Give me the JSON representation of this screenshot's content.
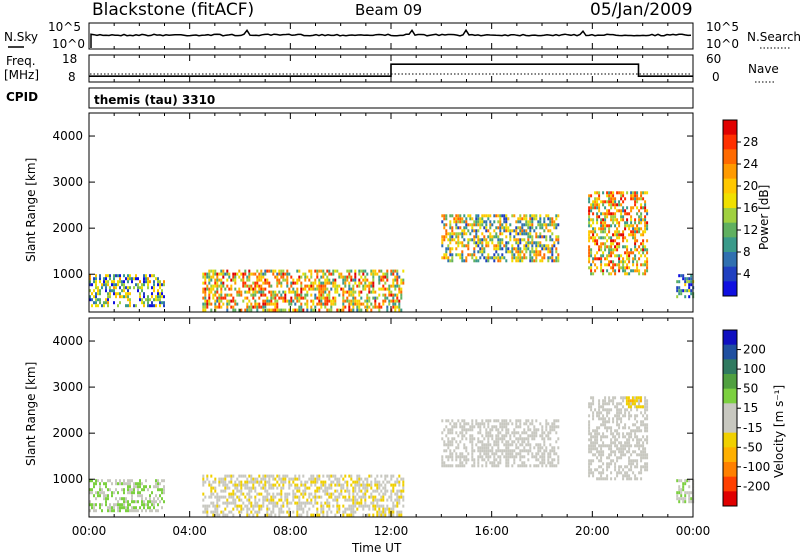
{
  "header": {
    "station": "Blackstone (fitACF)",
    "beam": "Beam 09",
    "date": "05/Jan/2009"
  },
  "nsky_panel": {
    "label": "N.Sky",
    "left_ticks": [
      "10^5",
      "10^0"
    ],
    "right_ticks": [
      "10^5",
      "10^0"
    ],
    "right_label": "N.Search"
  },
  "freq_panel": {
    "label_line1": "Freq.",
    "label_line2": "[MHz]",
    "left_ticks": [
      "18",
      "8"
    ],
    "right_ticks": [
      "60",
      "0"
    ],
    "right_label": "Nave",
    "cpid_label": "CPID"
  },
  "cpid_text": "themis (tau) 3310",
  "power_panel": {
    "ylabel": "Slant Range [km]",
    "colorbar_label": "Power [dB]",
    "colorbar_ticks": [
      "28",
      "24",
      "20",
      "16",
      "12",
      "8",
      "4"
    ],
    "colorbar_colors": [
      "#e00000",
      "#ff3000",
      "#ff6a00",
      "#ff9a00",
      "#ffc800",
      "#f0e000",
      "#a0d040",
      "#60b060",
      "#3a9a8a",
      "#3070b0",
      "#2040c0",
      "#1010e0"
    ]
  },
  "velocity_panel": {
    "ylabel": "Slant Range [km]",
    "colorbar_label": "Velocity [m s⁻¹]",
    "colorbar_ticks": [
      "200",
      "100",
      "50",
      "15",
      "-15",
      "-50",
      "-100",
      "-200"
    ],
    "colorbar_colors": [
      "#1010c0",
      "#2050a0",
      "#307a60",
      "#50a040",
      "#7cd040",
      "#c8c8c0",
      "#c8c8c0",
      "#f0d000",
      "#ffb000",
      "#ff8000",
      "#ff4000",
      "#e00000"
    ]
  },
  "x_axis": {
    "ticks": [
      "00:00",
      "04:00",
      "08:00",
      "12:00",
      "16:00",
      "20:00",
      "00:00"
    ],
    "label": "Time UT"
  },
  "chart_data": [
    {
      "type": "line",
      "title": "N.Sky / N.Search",
      "yscale": "log",
      "ylim": [
        1,
        100000
      ]
    },
    {
      "type": "line",
      "title": "Freq. [MHz] / Nave",
      "ylim_left": [
        8,
        18
      ],
      "ylim_right": [
        0,
        60
      ],
      "x": [
        "00:00",
        "12:00",
        "12:00",
        "21:50",
        "21:50",
        "24:00"
      ],
      "freq_mhz": [
        10,
        10,
        15,
        15,
        10,
        10
      ]
    },
    {
      "type": "heatmap",
      "title": "Power [dB]",
      "xlabel": "Time UT",
      "ylabel": "Slant Range [km]",
      "ylim": [
        180,
        4500
      ],
      "clim": [
        0,
        30
      ],
      "echo_regions": [
        {
          "time": [
            "00:00",
            "03:00"
          ],
          "range_km": [
            300,
            1000
          ],
          "value": 10
        },
        {
          "time": [
            "04:30",
            "12:30"
          ],
          "range_km": [
            200,
            1100
          ],
          "value": 18
        },
        {
          "time": [
            "14:00",
            "18:40"
          ],
          "range_km": [
            1300,
            2300
          ],
          "value": 14
        },
        {
          "time": [
            "19:50",
            "22:10"
          ],
          "range_km": [
            1000,
            2800
          ],
          "value": 18
        },
        {
          "time": [
            "23:20",
            "24:00"
          ],
          "range_km": [
            500,
            1000
          ],
          "value": 10
        }
      ]
    },
    {
      "type": "heatmap",
      "title": "Velocity [m s⁻¹]",
      "xlabel": "Time UT",
      "ylabel": "Slant Range [km]",
      "ylim": [
        180,
        4500
      ],
      "clim": [
        -250,
        250
      ],
      "echo_regions": [
        {
          "time": [
            "00:00",
            "03:00"
          ],
          "range_km": [
            300,
            1000
          ],
          "value": 40
        },
        {
          "time": [
            "04:30",
            "12:30"
          ],
          "range_km": [
            200,
            1100
          ],
          "value": -30
        },
        {
          "time": [
            "14:00",
            "18:40"
          ],
          "range_km": [
            1300,
            2300
          ],
          "value": 0
        },
        {
          "time": [
            "19:50",
            "22:10"
          ],
          "range_km": [
            1000,
            2800
          ],
          "value": 0
        },
        {
          "time": [
            "21:20",
            "22:00"
          ],
          "range_km": [
            2600,
            2800
          ],
          "value": -60
        },
        {
          "time": [
            "23:20",
            "24:00"
          ],
          "range_km": [
            500,
            1000
          ],
          "value": 30
        }
      ]
    }
  ]
}
